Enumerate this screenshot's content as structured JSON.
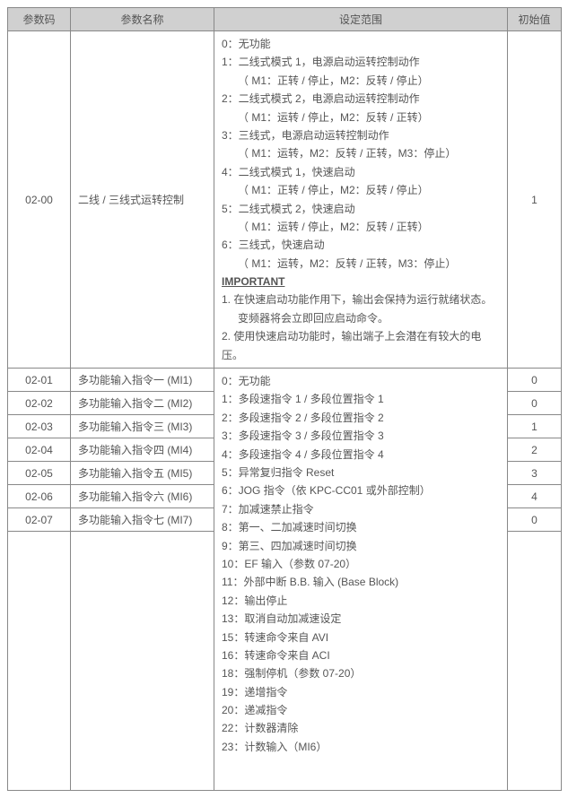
{
  "headers": {
    "code": "参数码",
    "name": "参数名称",
    "range": "设定范围",
    "default": "初始值"
  },
  "row0200": {
    "code": "02-00",
    "name": "二线 / 三线式运转控制",
    "default": "1",
    "range": {
      "l0": "0：无功能",
      "l1": "1：二线式模式 1，电源启动运转控制动作",
      "l1a": "（ M1：正转 / 停止，M2：反转 / 停止）",
      "l2": "2：二线式模式 2，电源启动运转控制动作",
      "l2a": "（ M1：运转 / 停止，M2：反转 / 正转）",
      "l3": "3：三线式，电源启动运转控制动作",
      "l3a": "（ M1：运转，M2：反转 / 正转，M3：停止）",
      "l4": "4：二线式模式 1，快速启动",
      "l4a": "（ M1：正转 / 停止，M2：反转 / 停止）",
      "l5": "5：二线式模式 2，快速启动",
      "l5a": "（ M1：运转 / 停止，M2：反转 / 正转）",
      "l6": "6：三线式，快速启动",
      "l6a": "（ M1：运转，M2：反转 / 正转，M3：停止）",
      "imp": "IMPORTANT",
      "n1": "1.   在快速启动功能作用下，输出会保持为运行就绪状态。",
      "n1b": "变频器将会立即回应启动命令。",
      "n2": "2.   使用快速启动功能时，输出端子上会潜在有较大的电压。"
    }
  },
  "rows_mi": [
    {
      "code": "02-01",
      "name": "多功能输入指令一 (MI1)",
      "default": "0"
    },
    {
      "code": "02-02",
      "name": "多功能输入指令二 (MI2)",
      "default": "0"
    },
    {
      "code": "02-03",
      "name": "多功能输入指令三 (MI3)",
      "default": "1"
    },
    {
      "code": "02-04",
      "name": "多功能输入指令四 (MI4)",
      "default": "2"
    },
    {
      "code": "02-05",
      "name": "多功能输入指令五 (MI5)",
      "default": "3"
    },
    {
      "code": "02-06",
      "name": "多功能输入指令六 (MI6)",
      "default": "4"
    },
    {
      "code": "02-07",
      "name": "多功能输入指令七 (MI7)",
      "default": "0"
    }
  ],
  "range_shared": [
    "0：无功能",
    "1：多段速指令 1 / 多段位置指令 1",
    "2：多段速指令 2 / 多段位置指令 2",
    "3：多段速指令 3 / 多段位置指令 3",
    "4：多段速指令 4 / 多段位置指令 4",
    "5：异常复归指令 Reset",
    "6：JOG 指令（依 KPC-CC01 或外部控制）",
    "7：加减速禁止指令",
    "8：第一、二加减速时间切换",
    "9：第三、四加减速时间切换",
    "10：EF 输入（参数 07-20）",
    "11：外部中断 B.B. 输入 (Base Block)",
    "12：输出停止",
    "13：取消自动加减速设定",
    "15：转速命令来自 AVI",
    "16：转速命令来自 ACI",
    "18：强制停机（参数 07-20）",
    "19：递增指令",
    "20：递减指令",
    "22：计数器清除",
    "23：计数输入（MI6）"
  ]
}
